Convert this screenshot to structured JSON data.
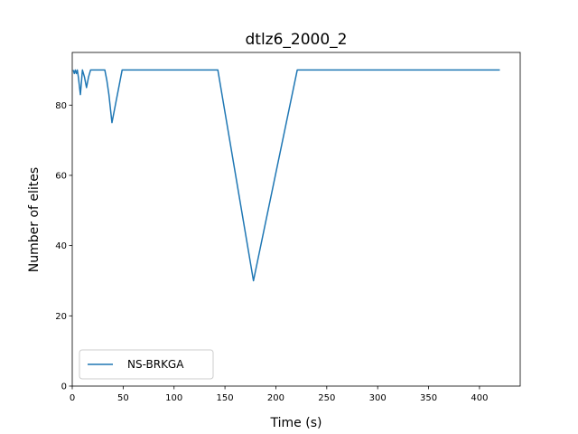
{
  "chart_data": {
    "type": "line",
    "title": "dtlz6_2000_2",
    "xlabel": "Time (s)",
    "ylabel": "Number of elites",
    "xlim": [
      0,
      440
    ],
    "ylim": [
      0,
      95
    ],
    "xticks": [
      0,
      50,
      100,
      150,
      200,
      250,
      300,
      350,
      400
    ],
    "yticks": [
      0,
      20,
      40,
      60,
      80
    ],
    "grid": false,
    "legend_position": "lower-left",
    "series": [
      {
        "name": "NS-BRKGA",
        "color": "#1f77b4",
        "x": [
          1,
          2,
          3,
          4,
          5,
          6,
          8,
          10,
          12,
          14,
          16,
          18,
          20,
          22,
          32,
          34,
          36,
          39,
          41,
          43,
          45,
          47,
          49,
          51,
          143,
          178,
          221,
          420
        ],
        "y": [
          90,
          89,
          90,
          89,
          90,
          88,
          83,
          90,
          88,
          85,
          88,
          90,
          90,
          90,
          90,
          87,
          83,
          75,
          78,
          81,
          84,
          87,
          90,
          90,
          90,
          30,
          90,
          90
        ]
      }
    ]
  }
}
